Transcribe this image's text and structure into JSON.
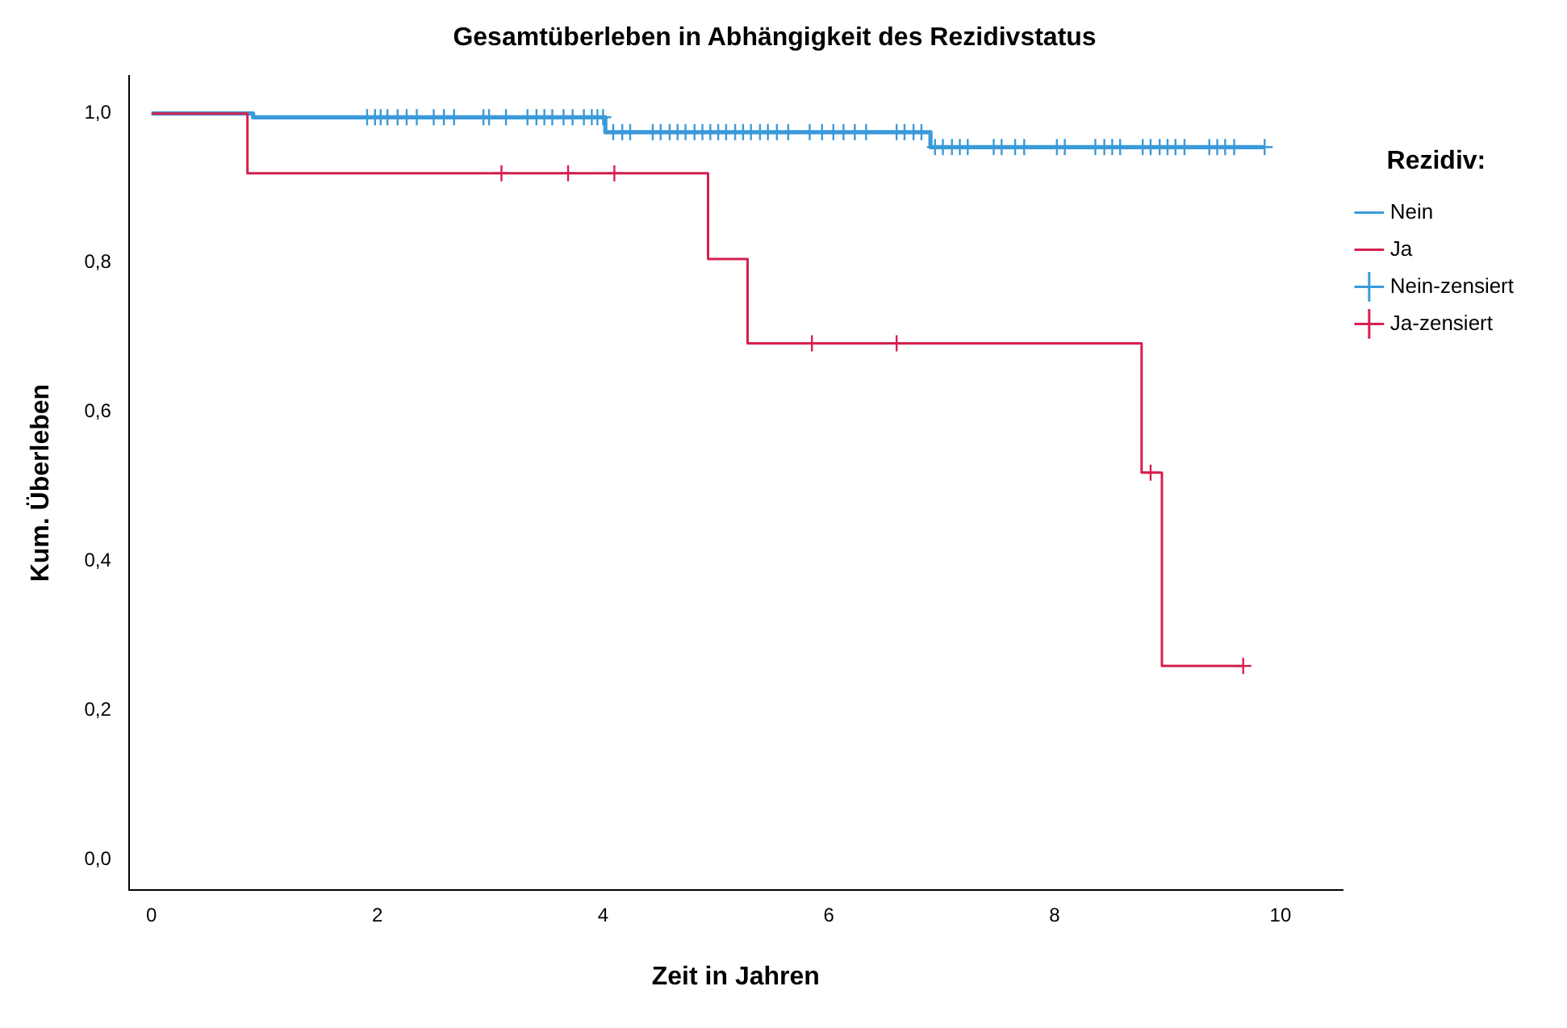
{
  "chart_data": {
    "type": "step",
    "title": "Gesamtüberleben in Abhängigkeit des Rezidivstatus",
    "xlabel": "Zeit in Jahren",
    "ylabel": "Kum. Überleben",
    "legend_title": "Rezidiv:",
    "legend": "right",
    "grid": false,
    "xlim": [
      -0.2,
      10.55
    ],
    "xticks": [
      0,
      2,
      4,
      6,
      8,
      10
    ],
    "ylim": [
      -0.04,
      1.05
    ],
    "yticks": [
      {
        "value": 0,
        "label": "0,0"
      },
      {
        "value": 0.2,
        "label": "0,2"
      },
      {
        "value": 0.4,
        "label": "0,4"
      },
      {
        "value": 0.6,
        "label": "0,6"
      },
      {
        "value": 0.8,
        "label": "0,8"
      },
      {
        "value": 1,
        "label": "1,0"
      }
    ],
    "series": [
      {
        "name": "Nein",
        "color": "#3a9ad9",
        "marker": "none",
        "x": [
          0,
          0.9,
          4.02,
          6.9,
          9.86
        ],
        "values": [
          1,
          0.995,
          0.975,
          0.955,
          0.955
        ]
      },
      {
        "name": "Ja",
        "color": "#d6204e",
        "marker": "none",
        "x": [
          0,
          0.85,
          4.93,
          5.28,
          8.77,
          8.95,
          9.67
        ],
        "values": [
          1,
          0.92,
          0.805,
          0.692,
          0.519,
          0.26,
          0.26
        ]
      },
      {
        "name": "Nein-zensiert",
        "type": "scatter",
        "color": "#3a9ad9",
        "marker": "cross",
        "x": [
          1.91,
          1.98,
          2.03,
          2.09,
          2.18,
          2.26,
          2.35,
          2.5,
          2.59,
          2.68,
          2.94,
          2.99,
          3.14,
          3.33,
          3.41,
          3.48,
          3.55,
          3.65,
          3.73,
          3.83,
          3.9,
          3.95,
          4.0,
          4.09,
          4.17,
          4.24,
          4.44,
          4.51,
          4.59,
          4.66,
          4.73,
          4.81,
          4.88,
          4.95,
          5.02,
          5.09,
          5.17,
          5.24,
          5.31,
          5.39,
          5.46,
          5.54,
          5.64,
          5.83,
          5.94,
          6.04,
          6.13,
          6.23,
          6.33,
          6.6,
          6.67,
          6.75,
          6.82,
          6.94,
          7.01,
          7.09,
          7.16,
          7.23,
          7.46,
          7.53,
          7.65,
          7.73,
          8.02,
          8.09,
          8.36,
          8.44,
          8.51,
          8.58,
          8.78,
          8.85,
          8.93,
          9.0,
          9.07,
          9.15,
          9.37,
          9.44,
          9.51,
          9.59,
          9.86
        ],
        "values": [
          0.995,
          0.995,
          0.995,
          0.995,
          0.995,
          0.995,
          0.995,
          0.995,
          0.995,
          0.995,
          0.995,
          0.995,
          0.995,
          0.995,
          0.995,
          0.995,
          0.995,
          0.995,
          0.995,
          0.995,
          0.995,
          0.995,
          0.995,
          0.975,
          0.975,
          0.975,
          0.975,
          0.975,
          0.975,
          0.975,
          0.975,
          0.975,
          0.975,
          0.975,
          0.975,
          0.975,
          0.975,
          0.975,
          0.975,
          0.975,
          0.975,
          0.975,
          0.975,
          0.975,
          0.975,
          0.975,
          0.975,
          0.975,
          0.975,
          0.975,
          0.975,
          0.975,
          0.975,
          0.955,
          0.955,
          0.955,
          0.955,
          0.955,
          0.955,
          0.955,
          0.955,
          0.955,
          0.955,
          0.955,
          0.955,
          0.955,
          0.955,
          0.955,
          0.955,
          0.955,
          0.955,
          0.955,
          0.955,
          0.955,
          0.955,
          0.955,
          0.955,
          0.955,
          0.955
        ]
      },
      {
        "name": "Ja-zensiert",
        "type": "scatter",
        "color": "#d6204e",
        "marker": "cross",
        "x": [
          3.1,
          3.69,
          4.1,
          5.85,
          6.6,
          8.85,
          9.67
        ],
        "values": [
          0.92,
          0.92,
          0.92,
          0.692,
          0.692,
          0.519,
          0.26
        ]
      }
    ]
  }
}
